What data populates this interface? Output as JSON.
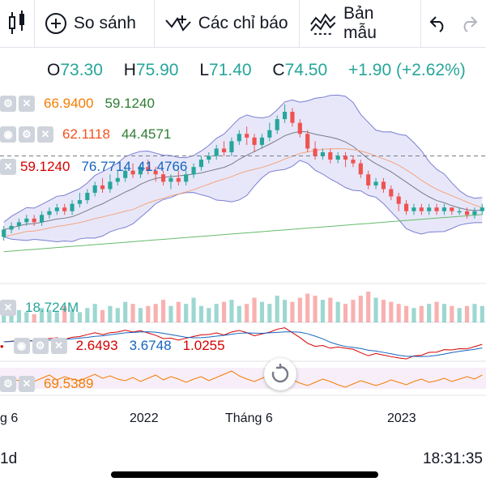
{
  "toolbar": {
    "compare_label": "So sánh",
    "indicators_label": "Các chỉ báo",
    "templates_label": "Bản mẫu"
  },
  "ohlc": {
    "o_label": "O",
    "o": "73.30",
    "h_label": "H",
    "h": "75.90",
    "l_label": "L",
    "l": "71.40",
    "c_label": "C",
    "c": "74.50",
    "change": "+1.90 (+2.62%)",
    "up_color": "#26a69a"
  },
  "indicators": {
    "row1": {
      "v1": "66.9400",
      "v2": "59.1240"
    },
    "row2": {
      "v1": "62.1118",
      "v2": "44.4571"
    },
    "row3": {
      "v1": "59.1240",
      "v2": "76.7714",
      "v3": "41.4766"
    },
    "volume": {
      "value": "18.724M"
    },
    "macd": {
      "v1": "2.6493",
      "v2": "3.6748",
      "v3": "1.0255"
    },
    "rsi": {
      "value": "69.5389"
    }
  },
  "time_axis": [
    "g 6",
    "2022",
    "Tháng 6",
    "2023"
  ],
  "status": {
    "interval": "1d",
    "clock": "18:31:35"
  },
  "chart_data": {
    "type": "candlestick",
    "series": [
      {
        "name": "price",
        "values": [
          {
            "o": 40,
            "c": 42,
            "l": 39,
            "h": 43
          },
          {
            "o": 42,
            "c": 43,
            "l": 41,
            "h": 44
          },
          {
            "o": 43,
            "c": 44,
            "l": 42,
            "h": 45
          },
          {
            "o": 44,
            "c": 45,
            "l": 43,
            "h": 46
          },
          {
            "o": 45,
            "c": 44,
            "l": 43,
            "h": 46
          },
          {
            "o": 44,
            "c": 46,
            "l": 43,
            "h": 47
          },
          {
            "o": 46,
            "c": 47,
            "l": 45,
            "h": 48
          },
          {
            "o": 47,
            "c": 48,
            "l": 46,
            "h": 49
          },
          {
            "o": 48,
            "c": 47,
            "l": 46,
            "h": 49
          },
          {
            "o": 47,
            "c": 49,
            "l": 46,
            "h": 50
          },
          {
            "o": 49,
            "c": 50,
            "l": 48,
            "h": 52
          },
          {
            "o": 50,
            "c": 52,
            "l": 49,
            "h": 53
          },
          {
            "o": 52,
            "c": 54,
            "l": 51,
            "h": 55
          },
          {
            "o": 54,
            "c": 53,
            "l": 52,
            "h": 56
          },
          {
            "o": 53,
            "c": 55,
            "l": 52,
            "h": 57
          },
          {
            "o": 55,
            "c": 56,
            "l": 54,
            "h": 58
          },
          {
            "o": 56,
            "c": 58,
            "l": 55,
            "h": 59
          },
          {
            "o": 58,
            "c": 57,
            "l": 56,
            "h": 60
          },
          {
            "o": 57,
            "c": 59,
            "l": 56,
            "h": 60
          },
          {
            "o": 59,
            "c": 58,
            "l": 57,
            "h": 61
          },
          {
            "o": 58,
            "c": 57,
            "l": 55,
            "h": 59
          },
          {
            "o": 57,
            "c": 55,
            "l": 54,
            "h": 58
          },
          {
            "o": 55,
            "c": 56,
            "l": 53,
            "h": 57
          },
          {
            "o": 56,
            "c": 55,
            "l": 54,
            "h": 58
          },
          {
            "o": 55,
            "c": 57,
            "l": 54,
            "h": 58
          },
          {
            "o": 57,
            "c": 59,
            "l": 56,
            "h": 60
          },
          {
            "o": 59,
            "c": 61,
            "l": 58,
            "h": 62
          },
          {
            "o": 61,
            "c": 62,
            "l": 60,
            "h": 63
          },
          {
            "o": 62,
            "c": 64,
            "l": 61,
            "h": 65
          },
          {
            "o": 64,
            "c": 63,
            "l": 62,
            "h": 66
          },
          {
            "o": 63,
            "c": 66,
            "l": 62,
            "h": 67
          },
          {
            "o": 66,
            "c": 68,
            "l": 65,
            "h": 69
          },
          {
            "o": 68,
            "c": 67,
            "l": 65,
            "h": 70
          },
          {
            "o": 67,
            "c": 65,
            "l": 63,
            "h": 68
          },
          {
            "o": 65,
            "c": 67,
            "l": 64,
            "h": 68
          },
          {
            "o": 67,
            "c": 69,
            "l": 66,
            "h": 71
          },
          {
            "o": 69,
            "c": 72,
            "l": 68,
            "h": 73
          },
          {
            "o": 72,
            "c": 74,
            "l": 71,
            "h": 76
          },
          {
            "o": 74,
            "c": 71,
            "l": 70,
            "h": 75
          },
          {
            "o": 71,
            "c": 68,
            "l": 67,
            "h": 72
          },
          {
            "o": 68,
            "c": 64,
            "l": 63,
            "h": 69
          },
          {
            "o": 64,
            "c": 62,
            "l": 61,
            "h": 66
          },
          {
            "o": 62,
            "c": 63,
            "l": 61,
            "h": 64
          },
          {
            "o": 63,
            "c": 61,
            "l": 60,
            "h": 64
          },
          {
            "o": 61,
            "c": 62,
            "l": 60,
            "h": 63
          },
          {
            "o": 62,
            "c": 61,
            "l": 59,
            "h": 63
          },
          {
            "o": 61,
            "c": 60,
            "l": 59,
            "h": 62
          },
          {
            "o": 60,
            "c": 57,
            "l": 56,
            "h": 61
          },
          {
            "o": 57,
            "c": 54,
            "l": 53,
            "h": 58
          },
          {
            "o": 54,
            "c": 55,
            "l": 53,
            "h": 56
          },
          {
            "o": 55,
            "c": 53,
            "l": 52,
            "h": 56
          },
          {
            "o": 53,
            "c": 51,
            "l": 50,
            "h": 54
          },
          {
            "o": 51,
            "c": 49,
            "l": 47,
            "h": 52
          },
          {
            "o": 49,
            "c": 47,
            "l": 46,
            "h": 50
          },
          {
            "o": 47,
            "c": 48,
            "l": 46,
            "h": 49
          },
          {
            "o": 48,
            "c": 47,
            "l": 46,
            "h": 49
          },
          {
            "o": 47,
            "c": 48,
            "l": 46,
            "h": 49
          },
          {
            "o": 48,
            "c": 47,
            "l": 46,
            "h": 49
          },
          {
            "o": 47,
            "c": 48,
            "l": 46,
            "h": 49
          },
          {
            "o": 48,
            "c": 47,
            "l": 46,
            "h": 48
          },
          {
            "o": 47,
            "c": 47,
            "l": 46,
            "h": 48
          },
          {
            "o": 47,
            "c": 46,
            "l": 45,
            "h": 48
          },
          {
            "o": 46,
            "c": 47,
            "l": 45,
            "h": 48
          },
          {
            "o": 47,
            "c": 48,
            "l": 46,
            "h": 49
          }
        ]
      }
    ],
    "volume": [
      5,
      4,
      6,
      5,
      4,
      7,
      6,
      5,
      8,
      6,
      5,
      7,
      9,
      6,
      8,
      7,
      10,
      9,
      7,
      8,
      9,
      11,
      8,
      10,
      9,
      12,
      8,
      7,
      9,
      10,
      11,
      8,
      9,
      12,
      10,
      9,
      13,
      11,
      10,
      12,
      14,
      13,
      11,
      12,
      10,
      9,
      11,
      13,
      15,
      12,
      11,
      10,
      9,
      8,
      7,
      8,
      9,
      10,
      9,
      8,
      7,
      8,
      9,
      8
    ],
    "rsi": [
      55,
      60,
      58,
      62,
      57,
      61,
      65,
      59,
      63,
      60,
      58,
      62,
      66,
      61,
      64,
      60,
      58,
      62,
      57,
      61,
      65,
      59,
      63,
      60,
      56,
      60,
      63,
      58,
      62,
      66,
      70,
      64,
      60,
      57,
      61,
      65,
      68,
      63,
      59,
      55,
      52,
      56,
      60,
      57,
      53,
      50,
      54,
      58,
      55,
      52,
      55,
      59,
      56,
      53,
      57,
      60,
      56,
      58,
      61,
      57,
      60,
      63,
      60,
      65
    ]
  }
}
